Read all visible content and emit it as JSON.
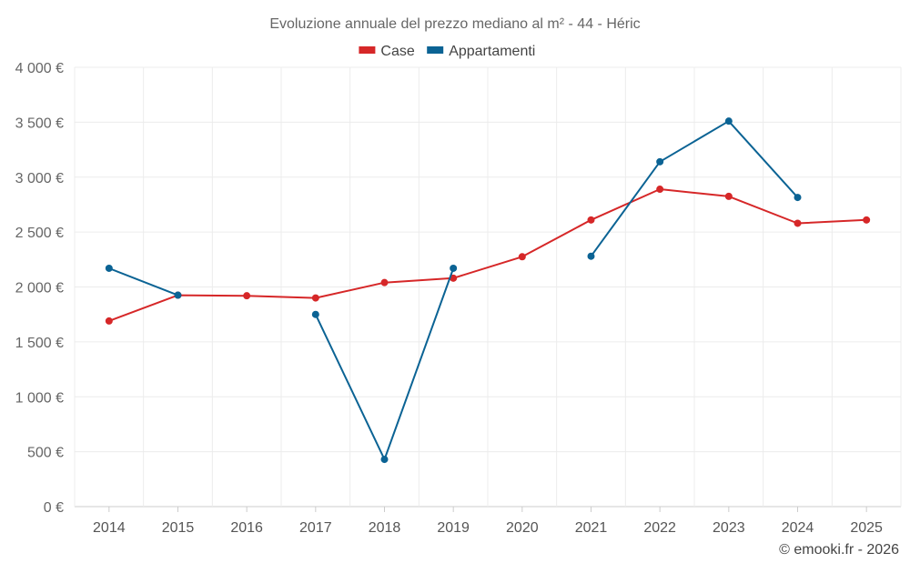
{
  "chart_data": {
    "type": "line",
    "title": "Evoluzione annuale del prezzo mediano al m² - 44 - Héric",
    "xlabel": "",
    "ylabel": "",
    "categories": [
      "2014",
      "2015",
      "2016",
      "2017",
      "2018",
      "2019",
      "2020",
      "2021",
      "2022",
      "2023",
      "2024",
      "2025"
    ],
    "ylim": [
      0,
      4000
    ],
    "yticks": [
      0,
      500,
      1000,
      1500,
      2000,
      2500,
      3000,
      3500,
      4000
    ],
    "ytick_labels": [
      "0 €",
      "500 €",
      "1 000 €",
      "1 500 €",
      "2 000 €",
      "2 500 €",
      "3 000 €",
      "3 500 €",
      "4 000 €"
    ],
    "grid": true,
    "legend_position": "top-center",
    "series": [
      {
        "name": "Case",
        "color": "#d62728",
        "values": [
          1690,
          1925,
          1920,
          1900,
          2040,
          2080,
          2275,
          2610,
          2890,
          2825,
          2580,
          2610
        ]
      },
      {
        "name": "Appartamenti",
        "color": "#0b6394",
        "values": [
          2170,
          1925,
          null,
          1750,
          430,
          2170,
          null,
          2280,
          3140,
          3510,
          2815,
          null
        ]
      }
    ],
    "credit": "© emooki.fr - 2026"
  }
}
